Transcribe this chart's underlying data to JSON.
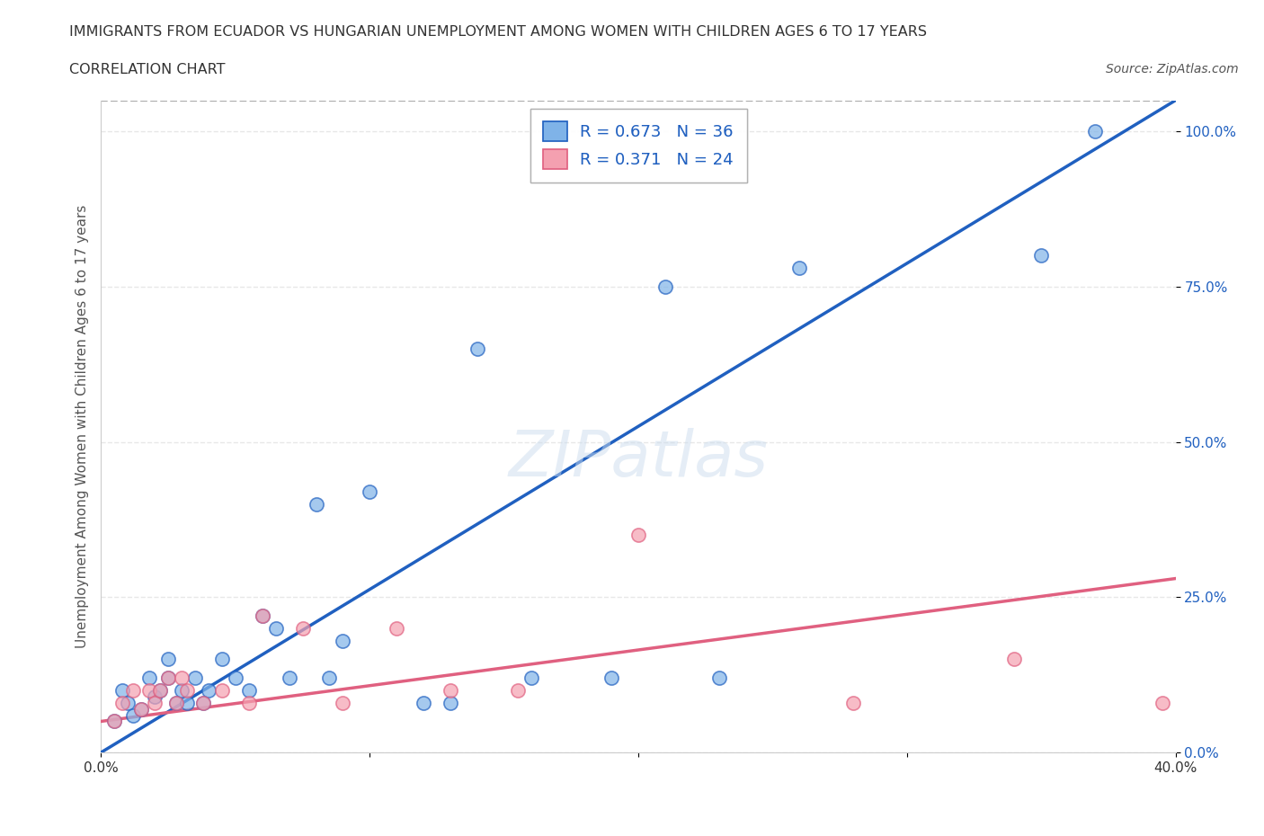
{
  "title": "IMMIGRANTS FROM ECUADOR VS HUNGARIAN UNEMPLOYMENT AMONG WOMEN WITH CHILDREN AGES 6 TO 17 YEARS",
  "subtitle": "CORRELATION CHART",
  "source": "Source: ZipAtlas.com",
  "xlabel": "",
  "ylabel": "Unemployment Among Women with Children Ages 6 to 17 years",
  "xlim": [
    0.0,
    0.4
  ],
  "ylim": [
    0.0,
    1.05
  ],
  "yticks": [
    0.0,
    0.25,
    0.5,
    0.75,
    1.0
  ],
  "ytick_labels": [
    "0.0%",
    "25.0%",
    "50.0%",
    "75.0%",
    "100.0%"
  ],
  "xticks": [
    0.0,
    0.1,
    0.2,
    0.3,
    0.4
  ],
  "xtick_labels": [
    "0.0%",
    "",
    "",
    "",
    "40.0%"
  ],
  "blue_scatter_x": [
    0.005,
    0.008,
    0.01,
    0.012,
    0.015,
    0.018,
    0.02,
    0.022,
    0.025,
    0.025,
    0.028,
    0.03,
    0.032,
    0.035,
    0.038,
    0.04,
    0.045,
    0.05,
    0.055,
    0.06,
    0.065,
    0.07,
    0.08,
    0.085,
    0.09,
    0.1,
    0.12,
    0.13,
    0.14,
    0.16,
    0.19,
    0.21,
    0.23,
    0.26,
    0.35,
    0.37
  ],
  "blue_scatter_y": [
    0.05,
    0.1,
    0.08,
    0.06,
    0.07,
    0.12,
    0.09,
    0.1,
    0.12,
    0.15,
    0.08,
    0.1,
    0.08,
    0.12,
    0.08,
    0.1,
    0.15,
    0.12,
    0.1,
    0.22,
    0.2,
    0.12,
    0.4,
    0.12,
    0.18,
    0.42,
    0.08,
    0.08,
    0.65,
    0.12,
    0.12,
    0.75,
    0.12,
    0.78,
    0.8,
    1.0
  ],
  "pink_scatter_x": [
    0.005,
    0.008,
    0.012,
    0.015,
    0.018,
    0.02,
    0.022,
    0.025,
    0.028,
    0.03,
    0.032,
    0.038,
    0.045,
    0.055,
    0.06,
    0.075,
    0.09,
    0.11,
    0.13,
    0.155,
    0.2,
    0.28,
    0.34,
    0.395
  ],
  "pink_scatter_y": [
    0.05,
    0.08,
    0.1,
    0.07,
    0.1,
    0.08,
    0.1,
    0.12,
    0.08,
    0.12,
    0.1,
    0.08,
    0.1,
    0.08,
    0.22,
    0.2,
    0.08,
    0.2,
    0.1,
    0.1,
    0.35,
    0.08,
    0.15,
    0.08
  ],
  "blue_line_x": [
    0.0,
    0.4
  ],
  "blue_line_y": [
    0.0,
    1.05
  ],
  "pink_line_x": [
    0.0,
    0.4
  ],
  "pink_line_y": [
    0.05,
    0.28
  ],
  "dashed_line_x": [
    0.0,
    0.4
  ],
  "dashed_line_y": [
    1.05,
    1.05
  ],
  "blue_color": "#7FB3E8",
  "pink_color": "#F4A0B0",
  "blue_line_color": "#2060C0",
  "pink_line_color": "#E06080",
  "dashed_color": "#AAAAAA",
  "legend_text_color": "#2060C0",
  "R_blue": "0.673",
  "N_blue": "36",
  "R_pink": "0.371",
  "N_pink": "24",
  "watermark": "ZIPatlas",
  "bg_color": "#FFFFFF",
  "grid_color": "#DDDDDD"
}
